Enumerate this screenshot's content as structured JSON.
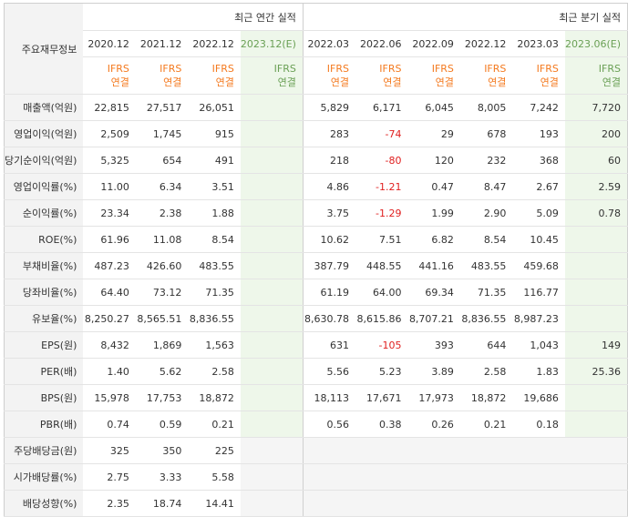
{
  "header": {
    "corner_label": "주요재무정보",
    "annual_group": "최근 연간 실적",
    "quarter_group": "최근 분기 실적",
    "annual_periods": [
      "2020.12",
      "2021.12",
      "2022.12",
      "2023.12(E)"
    ],
    "quarter_periods": [
      "2022.03",
      "2022.06",
      "2022.09",
      "2022.12",
      "2023.03",
      "2023.06(E)"
    ],
    "basis_line1": "IFRS",
    "basis_line2": "연결"
  },
  "rows": [
    {
      "label": "매출액(억원)",
      "annual": [
        "22,815",
        "27,517",
        "26,051",
        ""
      ],
      "quarter": [
        "5,829",
        "6,171",
        "6,045",
        "8,005",
        "7,242",
        "7,720"
      ]
    },
    {
      "label": "영업이익(억원)",
      "annual": [
        "2,509",
        "1,745",
        "915",
        ""
      ],
      "quarter": [
        "283",
        "-74",
        "29",
        "678",
        "193",
        "200"
      ]
    },
    {
      "label": "당기순이익(억원)",
      "annual": [
        "5,325",
        "654",
        "491",
        ""
      ],
      "quarter": [
        "218",
        "-80",
        "120",
        "232",
        "368",
        "60"
      ]
    },
    {
      "label": "영업이익률(%)",
      "annual": [
        "11.00",
        "6.34",
        "3.51",
        ""
      ],
      "quarter": [
        "4.86",
        "-1.21",
        "0.47",
        "8.47",
        "2.67",
        "2.59"
      ]
    },
    {
      "label": "순이익률(%)",
      "annual": [
        "23.34",
        "2.38",
        "1.88",
        ""
      ],
      "quarter": [
        "3.75",
        "-1.29",
        "1.99",
        "2.90",
        "5.09",
        "0.78"
      ]
    },
    {
      "label": "ROE(%)",
      "annual": [
        "61.96",
        "11.08",
        "8.54",
        ""
      ],
      "quarter": [
        "10.62",
        "7.51",
        "6.82",
        "8.54",
        "10.45",
        ""
      ]
    },
    {
      "label": "부채비율(%)",
      "annual": [
        "487.23",
        "426.60",
        "483.55",
        ""
      ],
      "quarter": [
        "387.79",
        "448.55",
        "441.16",
        "483.55",
        "459.68",
        ""
      ]
    },
    {
      "label": "당좌비율(%)",
      "annual": [
        "64.40",
        "73.12",
        "71.35",
        ""
      ],
      "quarter": [
        "61.19",
        "64.00",
        "69.34",
        "71.35",
        "116.77",
        ""
      ]
    },
    {
      "label": "유보율(%)",
      "annual": [
        "8,250.27",
        "8,565.51",
        "8,836.55",
        ""
      ],
      "quarter": [
        "8,630.78",
        "8,615.86",
        "8,707.21",
        "8,836.55",
        "8,987.23",
        ""
      ]
    },
    {
      "label": "EPS(원)",
      "annual": [
        "8,432",
        "1,869",
        "1,563",
        ""
      ],
      "quarter": [
        "631",
        "-105",
        "393",
        "644",
        "1,043",
        "149"
      ]
    },
    {
      "label": "PER(배)",
      "annual": [
        "1.40",
        "5.62",
        "2.58",
        ""
      ],
      "quarter": [
        "5.56",
        "5.23",
        "3.89",
        "2.58",
        "1.83",
        "25.36"
      ]
    },
    {
      "label": "BPS(원)",
      "annual": [
        "15,978",
        "17,753",
        "18,872",
        ""
      ],
      "quarter": [
        "18,113",
        "17,671",
        "17,973",
        "18,872",
        "19,686",
        ""
      ]
    },
    {
      "label": "PBR(배)",
      "annual": [
        "0.74",
        "0.59",
        "0.21",
        ""
      ],
      "quarter": [
        "0.56",
        "0.38",
        "0.26",
        "0.21",
        "0.18",
        ""
      ]
    },
    {
      "label": "주당배당금(원)",
      "annual": [
        "325",
        "350",
        "225",
        ""
      ],
      "quarter": [
        "",
        "",
        "",
        "",
        "",
        ""
      ]
    },
    {
      "label": "시가배당률(%)",
      "annual": [
        "2.75",
        "3.33",
        "5.58",
        ""
      ],
      "quarter": [
        "",
        "",
        "",
        "",
        "",
        ""
      ]
    },
    {
      "label": "배당성향(%)",
      "annual": [
        "2.35",
        "18.74",
        "14.41",
        ""
      ],
      "quarter": [
        "",
        "",
        "",
        "",
        "",
        ""
      ]
    }
  ],
  "colors": {
    "basis_text": "#f47a1f",
    "estimate_bg": "#eef7ea",
    "negative_text": "#e02020",
    "label_bg": "#f3f3f3"
  }
}
